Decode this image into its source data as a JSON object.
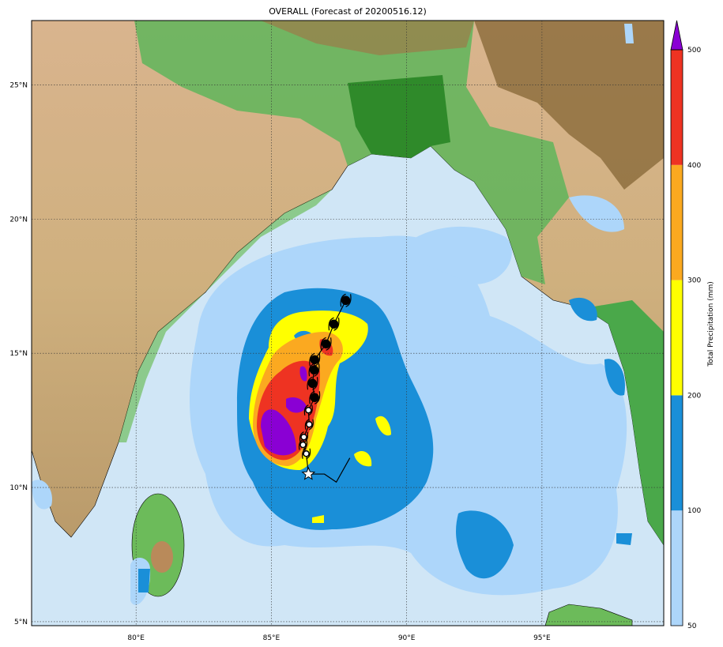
{
  "title": "OVERALL (Forecast of 20200516.12)",
  "map": {
    "lon_range": [
      76.14,
      99.5
    ],
    "lat_range": [
      4.85,
      27.4
    ],
    "lon_ticks": [
      {
        "value": 80,
        "label": "80°E"
      },
      {
        "value": 85,
        "label": "85°E"
      },
      {
        "value": 90,
        "label": "90°E"
      },
      {
        "value": 95,
        "label": "95°E"
      }
    ],
    "lat_ticks": [
      {
        "value": 5,
        "label": "5°N"
      },
      {
        "value": 10,
        "label": "10°N"
      },
      {
        "value": 15,
        "label": "15°N"
      },
      {
        "value": 20,
        "label": "20°N"
      },
      {
        "value": 25,
        "label": "25°N"
      }
    ],
    "grid": true,
    "ocean_color": "#d0e6f6",
    "storm_track": {
      "forecast_points": [
        {
          "lon": 86.37,
          "lat": 10.5,
          "symbol": "star"
        },
        {
          "lon": 86.29,
          "lat": 11.26,
          "symbol": "open"
        },
        {
          "lon": 86.17,
          "lat": 11.59,
          "symbol": "open"
        },
        {
          "lon": 86.2,
          "lat": 11.88,
          "symbol": "open"
        },
        {
          "lon": 86.4,
          "lat": 12.35,
          "symbol": "open"
        },
        {
          "lon": 86.37,
          "lat": 12.88,
          "symbol": "open"
        },
        {
          "lon": 86.6,
          "lat": 13.35,
          "symbol": "filled"
        },
        {
          "lon": 86.52,
          "lat": 13.88,
          "symbol": "filled"
        },
        {
          "lon": 86.58,
          "lat": 14.38,
          "symbol": "filled"
        },
        {
          "lon": 86.6,
          "lat": 14.76,
          "symbol": "filled"
        },
        {
          "lon": 87.02,
          "lat": 15.35,
          "symbol": "filled"
        },
        {
          "lon": 87.31,
          "lat": 16.09,
          "symbol": "filled"
        },
        {
          "lon": 87.75,
          "lat": 16.97,
          "symbol": "filled"
        }
      ],
      "past_track": [
        {
          "lon": 86.37,
          "lat": 10.5
        },
        {
          "lon": 86.96,
          "lat": 10.5
        },
        {
          "lon": 87.4,
          "lat": 10.2
        },
        {
          "lon": 87.9,
          "lat": 11.1
        }
      ]
    }
  },
  "colorbar": {
    "label": "Total Precipitation (mm)",
    "levels": [
      {
        "from": 50,
        "to": 100,
        "color": "#add6fa"
      },
      {
        "from": 100,
        "to": 200,
        "color": "#1a8fd8"
      },
      {
        "from": 200,
        "to": 300,
        "color": "#ffff00"
      },
      {
        "from": 300,
        "to": 400,
        "color": "#fba920"
      },
      {
        "from": 400,
        "to": 500,
        "color": "#ee3322"
      }
    ],
    "extend_color": "#8a00d4",
    "tick_labels": [
      "50",
      "100",
      "200",
      "300",
      "400",
      "500"
    ]
  }
}
